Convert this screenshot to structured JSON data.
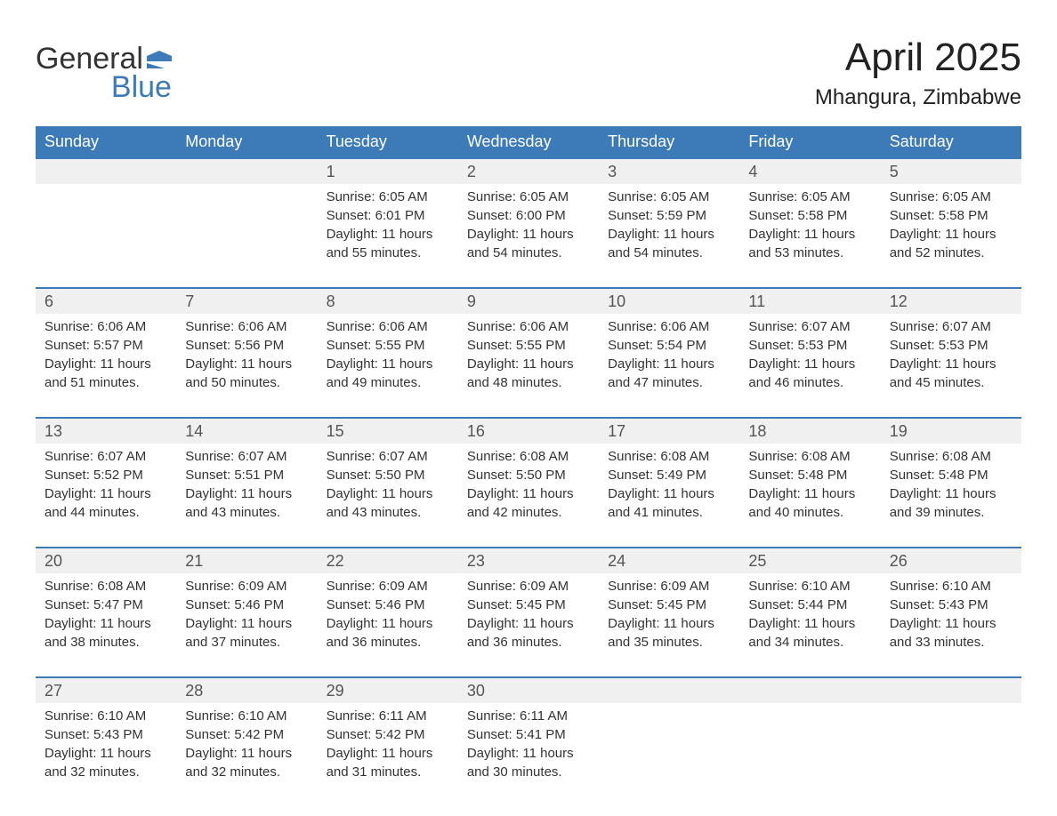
{
  "logo": {
    "word1": "General",
    "word2": "Blue",
    "flag_color": "#3d7ab8"
  },
  "title": "April 2025",
  "subtitle": "Mhangura, Zimbabwe",
  "header_bg": "#3d7ab8",
  "header_text_color": "#ffffff",
  "daynum_bg": "#f0f0f0",
  "daynum_border": "#3d7ab8",
  "body_bg": "#ffffff",
  "text_color": "#333333",
  "column_headers": [
    "Sunday",
    "Monday",
    "Tuesday",
    "Wednesday",
    "Thursday",
    "Friday",
    "Saturday"
  ],
  "weeks": [
    [
      null,
      null,
      {
        "day": "1",
        "sunrise": "Sunrise: 6:05 AM",
        "sunset": "Sunset: 6:01 PM",
        "daylight": "Daylight: 11 hours and 55 minutes."
      },
      {
        "day": "2",
        "sunrise": "Sunrise: 6:05 AM",
        "sunset": "Sunset: 6:00 PM",
        "daylight": "Daylight: 11 hours and 54 minutes."
      },
      {
        "day": "3",
        "sunrise": "Sunrise: 6:05 AM",
        "sunset": "Sunset: 5:59 PM",
        "daylight": "Daylight: 11 hours and 54 minutes."
      },
      {
        "day": "4",
        "sunrise": "Sunrise: 6:05 AM",
        "sunset": "Sunset: 5:58 PM",
        "daylight": "Daylight: 11 hours and 53 minutes."
      },
      {
        "day": "5",
        "sunrise": "Sunrise: 6:05 AM",
        "sunset": "Sunset: 5:58 PM",
        "daylight": "Daylight: 11 hours and 52 minutes."
      }
    ],
    [
      {
        "day": "6",
        "sunrise": "Sunrise: 6:06 AM",
        "sunset": "Sunset: 5:57 PM",
        "daylight": "Daylight: 11 hours and 51 minutes."
      },
      {
        "day": "7",
        "sunrise": "Sunrise: 6:06 AM",
        "sunset": "Sunset: 5:56 PM",
        "daylight": "Daylight: 11 hours and 50 minutes."
      },
      {
        "day": "8",
        "sunrise": "Sunrise: 6:06 AM",
        "sunset": "Sunset: 5:55 PM",
        "daylight": "Daylight: 11 hours and 49 minutes."
      },
      {
        "day": "9",
        "sunrise": "Sunrise: 6:06 AM",
        "sunset": "Sunset: 5:55 PM",
        "daylight": "Daylight: 11 hours and 48 minutes."
      },
      {
        "day": "10",
        "sunrise": "Sunrise: 6:06 AM",
        "sunset": "Sunset: 5:54 PM",
        "daylight": "Daylight: 11 hours and 47 minutes."
      },
      {
        "day": "11",
        "sunrise": "Sunrise: 6:07 AM",
        "sunset": "Sunset: 5:53 PM",
        "daylight": "Daylight: 11 hours and 46 minutes."
      },
      {
        "day": "12",
        "sunrise": "Sunrise: 6:07 AM",
        "sunset": "Sunset: 5:53 PM",
        "daylight": "Daylight: 11 hours and 45 minutes."
      }
    ],
    [
      {
        "day": "13",
        "sunrise": "Sunrise: 6:07 AM",
        "sunset": "Sunset: 5:52 PM",
        "daylight": "Daylight: 11 hours and 44 minutes."
      },
      {
        "day": "14",
        "sunrise": "Sunrise: 6:07 AM",
        "sunset": "Sunset: 5:51 PM",
        "daylight": "Daylight: 11 hours and 43 minutes."
      },
      {
        "day": "15",
        "sunrise": "Sunrise: 6:07 AM",
        "sunset": "Sunset: 5:50 PM",
        "daylight": "Daylight: 11 hours and 43 minutes."
      },
      {
        "day": "16",
        "sunrise": "Sunrise: 6:08 AM",
        "sunset": "Sunset: 5:50 PM",
        "daylight": "Daylight: 11 hours and 42 minutes."
      },
      {
        "day": "17",
        "sunrise": "Sunrise: 6:08 AM",
        "sunset": "Sunset: 5:49 PM",
        "daylight": "Daylight: 11 hours and 41 minutes."
      },
      {
        "day": "18",
        "sunrise": "Sunrise: 6:08 AM",
        "sunset": "Sunset: 5:48 PM",
        "daylight": "Daylight: 11 hours and 40 minutes."
      },
      {
        "day": "19",
        "sunrise": "Sunrise: 6:08 AM",
        "sunset": "Sunset: 5:48 PM",
        "daylight": "Daylight: 11 hours and 39 minutes."
      }
    ],
    [
      {
        "day": "20",
        "sunrise": "Sunrise: 6:08 AM",
        "sunset": "Sunset: 5:47 PM",
        "daylight": "Daylight: 11 hours and 38 minutes."
      },
      {
        "day": "21",
        "sunrise": "Sunrise: 6:09 AM",
        "sunset": "Sunset: 5:46 PM",
        "daylight": "Daylight: 11 hours and 37 minutes."
      },
      {
        "day": "22",
        "sunrise": "Sunrise: 6:09 AM",
        "sunset": "Sunset: 5:46 PM",
        "daylight": "Daylight: 11 hours and 36 minutes."
      },
      {
        "day": "23",
        "sunrise": "Sunrise: 6:09 AM",
        "sunset": "Sunset: 5:45 PM",
        "daylight": "Daylight: 11 hours and 36 minutes."
      },
      {
        "day": "24",
        "sunrise": "Sunrise: 6:09 AM",
        "sunset": "Sunset: 5:45 PM",
        "daylight": "Daylight: 11 hours and 35 minutes."
      },
      {
        "day": "25",
        "sunrise": "Sunrise: 6:10 AM",
        "sunset": "Sunset: 5:44 PM",
        "daylight": "Daylight: 11 hours and 34 minutes."
      },
      {
        "day": "26",
        "sunrise": "Sunrise: 6:10 AM",
        "sunset": "Sunset: 5:43 PM",
        "daylight": "Daylight: 11 hours and 33 minutes."
      }
    ],
    [
      {
        "day": "27",
        "sunrise": "Sunrise: 6:10 AM",
        "sunset": "Sunset: 5:43 PM",
        "daylight": "Daylight: 11 hours and 32 minutes."
      },
      {
        "day": "28",
        "sunrise": "Sunrise: 6:10 AM",
        "sunset": "Sunset: 5:42 PM",
        "daylight": "Daylight: 11 hours and 32 minutes."
      },
      {
        "day": "29",
        "sunrise": "Sunrise: 6:11 AM",
        "sunset": "Sunset: 5:42 PM",
        "daylight": "Daylight: 11 hours and 31 minutes."
      },
      {
        "day": "30",
        "sunrise": "Sunrise: 6:11 AM",
        "sunset": "Sunset: 5:41 PM",
        "daylight": "Daylight: 11 hours and 30 minutes."
      },
      null,
      null,
      null
    ]
  ]
}
